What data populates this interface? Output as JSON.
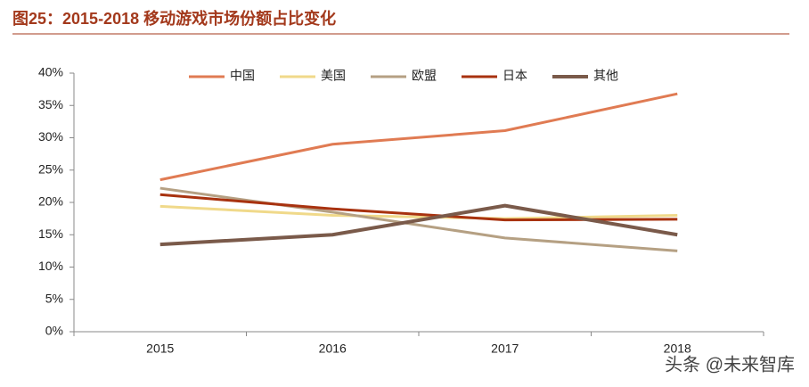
{
  "chart_data": {
    "type": "line",
    "title": "图25：2015-2018 移动游戏市场份额占比变化",
    "watermark": "头条 @未来智库",
    "categories": [
      "2015",
      "2016",
      "2017",
      "2018"
    ],
    "series": [
      {
        "name": "中国",
        "color": "#e07b53",
        "values": [
          23.5,
          29,
          31.1,
          36.8
        ]
      },
      {
        "name": "美国",
        "color": "#f0d98a",
        "values": [
          19.4,
          18,
          17.5,
          18
        ]
      },
      {
        "name": "欧盟",
        "color": "#b5a083",
        "values": [
          22.2,
          18.5,
          14.5,
          12.5
        ]
      },
      {
        "name": "日本",
        "color": "#a8320f",
        "values": [
          21.2,
          19,
          17.3,
          17.4
        ]
      },
      {
        "name": "其他",
        "color": "#7a5a4a",
        "values": [
          13.5,
          15,
          19.5,
          15
        ]
      }
    ],
    "ylim": [
      0,
      40
    ],
    "yticks": [
      {
        "value": 0,
        "label": "0%"
      },
      {
        "value": 5,
        "label": "5%"
      },
      {
        "value": 10,
        "label": "10%"
      },
      {
        "value": 15,
        "label": "15%"
      },
      {
        "value": 20,
        "label": "20%"
      },
      {
        "value": 25,
        "label": "25%"
      },
      {
        "value": 30,
        "label": "30%"
      },
      {
        "value": 35,
        "label": "35%"
      },
      {
        "value": 40,
        "label": "40%"
      }
    ],
    "legend": "top"
  }
}
